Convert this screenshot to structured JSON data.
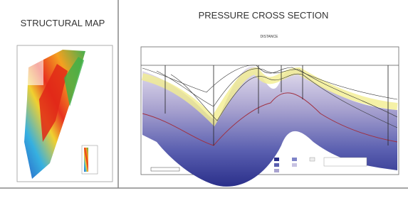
{
  "panels": [
    {
      "title": "STRUCTURAL MAP"
    },
    {
      "title": "PRESSURE CROSS SECTION",
      "axis_label": "DISTANCE"
    }
  ]
}
